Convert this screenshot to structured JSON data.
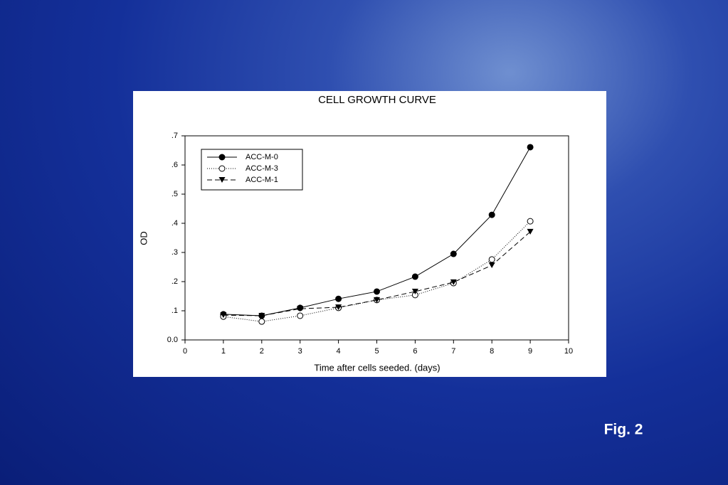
{
  "chart_data": {
    "type": "line",
    "title": "CELL GROWTH CURVE",
    "x_label": "Time after cells seeded. (days)",
    "y_label": "OD",
    "xlim": [
      0,
      10
    ],
    "xticks": [
      0,
      1,
      2,
      3,
      4,
      5,
      6,
      7,
      8,
      9,
      10
    ],
    "ylim": [
      0,
      0.7
    ],
    "yticks": [
      {
        "value": 0,
        "label": "0.0"
      },
      {
        "value": 0.1,
        "label": ".1"
      },
      {
        "value": 0.2,
        "label": ".2"
      },
      {
        "value": 0.3,
        "label": ".3"
      },
      {
        "value": 0.4,
        "label": ".4"
      },
      {
        "value": 0.5,
        "label": ".5"
      },
      {
        "value": 0.6,
        "label": ".6"
      },
      {
        "value": 0.7,
        "label": ".7"
      }
    ],
    "legend": "upper left",
    "x": [
      1,
      2,
      3,
      4,
      5,
      6,
      7,
      8,
      9
    ],
    "series": [
      {
        "name": "ACC-M-0",
        "color": "#000000",
        "dash": "solid",
        "marker": "filled-circle",
        "values": [
          0.088,
          0.083,
          0.11,
          0.141,
          0.166,
          0.217,
          0.295,
          0.429,
          0.661
        ]
      },
      {
        "name": "ACC-M-3",
        "color": "#000000",
        "dash": "dotted",
        "marker": "open-circle",
        "values": [
          0.08,
          0.063,
          0.083,
          0.11,
          0.137,
          0.154,
          0.195,
          0.276,
          0.407
        ]
      },
      {
        "name": "ACC-M-1",
        "color": "#000000",
        "dash": "dashed",
        "marker": "filled-triangle-down",
        "values": [
          0.085,
          0.083,
          0.107,
          0.112,
          0.137,
          0.166,
          0.198,
          0.256,
          0.371
        ]
      }
    ]
  },
  "caption": "Fig. 2"
}
